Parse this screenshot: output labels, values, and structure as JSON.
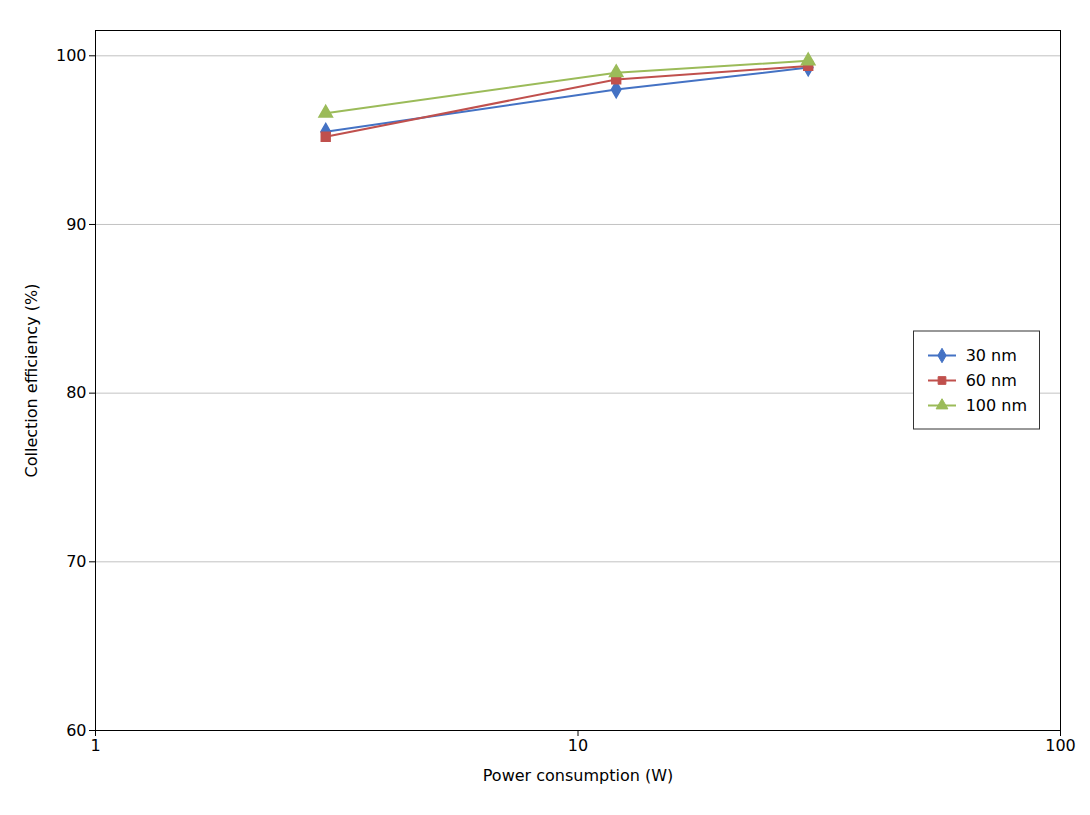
{
  "chart_data": {
    "type": "line",
    "x": [
      3,
      12,
      30
    ],
    "series": [
      {
        "name": "30 nm",
        "color": "#4472C4",
        "marker": "diamond",
        "values": [
          95.5,
          98.0,
          99.3
        ]
      },
      {
        "name": "60 nm",
        "color": "#C0504D",
        "marker": "square",
        "values": [
          95.2,
          98.6,
          99.4
        ]
      },
      {
        "name": "100 nm",
        "color": "#9BBB59",
        "marker": "triangle",
        "values": [
          96.6,
          99.0,
          99.7
        ]
      }
    ],
    "x_label": "Power consumption (W)",
    "y_label": "Collection efficiency (%)",
    "log": "x",
    "xlim": [
      1,
      100
    ],
    "xticks": [
      1,
      10,
      100
    ],
    "ylim": [
      60,
      101.5
    ],
    "yticks": [
      60,
      70,
      80,
      90,
      100
    ],
    "grid": true,
    "legend": "center right"
  }
}
